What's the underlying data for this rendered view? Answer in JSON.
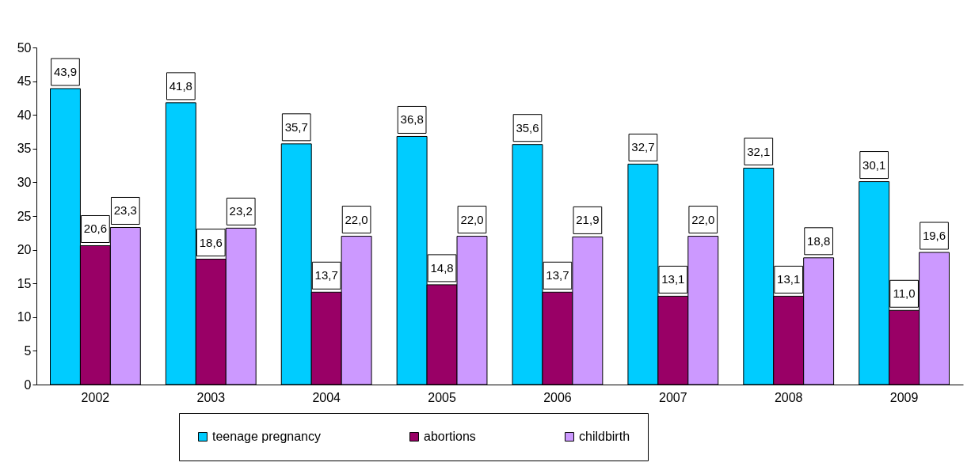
{
  "chart_data": {
    "type": "bar",
    "categories": [
      "2002",
      "2003",
      "2004",
      "2005",
      "2006",
      "2007",
      "2008",
      "2009"
    ],
    "series": [
      {
        "name": "teenage pregnancy",
        "color": "#00ccff",
        "values": [
          43.9,
          41.8,
          35.7,
          36.8,
          35.6,
          32.7,
          32.1,
          30.1
        ],
        "value_labels": [
          "43,9",
          "41,8",
          "35,7",
          "36,8",
          "35,6",
          "32,7",
          "32,1",
          "30,1"
        ]
      },
      {
        "name": "abortions",
        "color": "#990066",
        "values": [
          20.6,
          18.6,
          13.7,
          14.8,
          13.7,
          13.1,
          13.1,
          11.0
        ],
        "value_labels": [
          "20,6",
          "18,6",
          "13,7",
          "14,8",
          "13,7",
          "13,1",
          "13,1",
          "11,0"
        ]
      },
      {
        "name": "childbirth",
        "color": "#cc99ff",
        "values": [
          23.3,
          23.2,
          22.0,
          22.0,
          21.9,
          22.0,
          18.8,
          19.6
        ],
        "value_labels": [
          "23,3",
          "23,2",
          "22,0",
          "22,0",
          "21,9",
          "22,0",
          "18,8",
          "19,6"
        ]
      }
    ],
    "ylim": [
      0,
      50
    ],
    "yticks": [
      0,
      5,
      10,
      15,
      20,
      25,
      30,
      35,
      40,
      45,
      50
    ],
    "grid": false,
    "legend": "bottom"
  }
}
